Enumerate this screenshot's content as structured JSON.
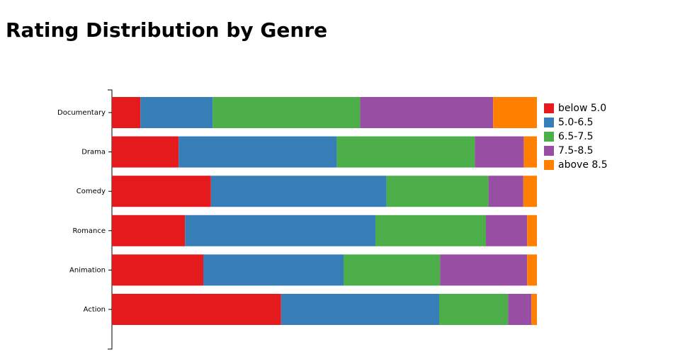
{
  "chart_data": {
    "type": "stacked-bar-horizontal",
    "title": "Rating Distribution by Genre",
    "categories": [
      "Documentary",
      "Drama",
      "Comedy",
      "Romance",
      "Animation",
      "Action"
    ],
    "series": [
      {
        "name": "below 5.0",
        "color": "#e41a1c",
        "values": [
          6.7,
          15.7,
          23.3,
          17.2,
          21.5,
          39.8
        ]
      },
      {
        "name": "5.0-6.5",
        "color": "#377eb8",
        "values": [
          17,
          37.2,
          41.3,
          44.8,
          33,
          37.2
        ]
      },
      {
        "name": "6.5-7.5",
        "color": "#4daf4a",
        "values": [
          34.7,
          32.5,
          24,
          26,
          22.7,
          16.2
        ]
      },
      {
        "name": "7.5-8.5",
        "color": "#984ea3",
        "values": [
          31.3,
          11.5,
          8.2,
          9.7,
          20.5,
          5.5
        ]
      },
      {
        "name": "above 8.5",
        "color": "#ff7f00",
        "values": [
          10.3,
          3.1,
          3.2,
          2.3,
          2.3,
          1.3
        ]
      }
    ],
    "xlim": [
      0,
      100
    ],
    "legend": "right"
  }
}
